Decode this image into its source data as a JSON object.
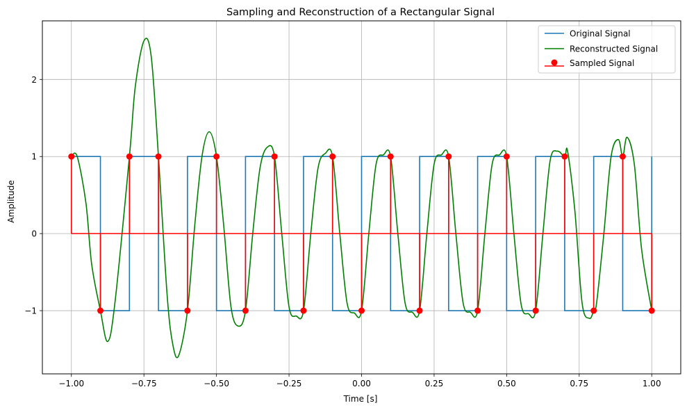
{
  "chart_data": {
    "type": "line",
    "title": "Sampling and Reconstruction of a Rectangular Signal",
    "xlabel": "Time [s]",
    "ylabel": "Amplitude",
    "xlim": [
      -1.1,
      1.1
    ],
    "ylim": [
      -1.82,
      2.76
    ],
    "grid": true,
    "legend_position": "top-right",
    "x_ticks": [
      -1.0,
      -0.75,
      -0.5,
      -0.25,
      0.0,
      0.25,
      0.5,
      0.75,
      1.0
    ],
    "x_tick_labels": [
      "−1.00",
      "−0.75",
      "−0.50",
      "−0.25",
      "0.00",
      "0.25",
      "0.50",
      "0.75",
      "1.00"
    ],
    "y_ticks": [
      -1,
      0,
      1,
      2
    ],
    "y_tick_labels": [
      "−1",
      "0",
      "1",
      "2"
    ],
    "colors": {
      "original": "#1f77b4",
      "reconstructed": "#008000",
      "sampled": "#ff0000",
      "grid": "#b0b0b0"
    },
    "series": [
      {
        "name": "Original Signal",
        "kind": "step",
        "x": [
          -1.0,
          -0.9,
          -0.9,
          -0.8,
          -0.8,
          -0.7,
          -0.7,
          -0.6,
          -0.6,
          -0.5,
          -0.5,
          -0.4,
          -0.4,
          -0.3,
          -0.3,
          -0.2,
          -0.2,
          -0.1,
          -0.1,
          0.0,
          0.0,
          0.1,
          0.1,
          0.2,
          0.2,
          0.3,
          0.3,
          0.4,
          0.4,
          0.5,
          0.5,
          0.6,
          0.6,
          0.7,
          0.7,
          0.8,
          0.8,
          0.9,
          0.9,
          1.0,
          1.0
        ],
        "y": [
          1,
          1,
          -1,
          -1,
          1,
          1,
          -1,
          -1,
          1,
          1,
          -1,
          -1,
          1,
          1,
          -1,
          -1,
          1,
          1,
          -1,
          -1,
          1,
          1,
          -1,
          -1,
          1,
          1,
          -1,
          -1,
          1,
          1,
          -1,
          -1,
          1,
          1,
          -1,
          -1,
          1,
          1,
          -1,
          -1,
          1
        ]
      },
      {
        "name": "Reconstructed Signal",
        "kind": "line",
        "x": [
          -1.0,
          -0.98,
          -0.95,
          -0.93,
          -0.9,
          -0.875,
          -0.85,
          -0.8,
          -0.78,
          -0.75,
          -0.725,
          -0.7,
          -0.67,
          -0.65,
          -0.63,
          -0.6,
          -0.575,
          -0.55,
          -0.525,
          -0.5,
          -0.475,
          -0.45,
          -0.425,
          -0.4,
          -0.375,
          -0.35,
          -0.325,
          -0.3,
          -0.275,
          -0.25,
          -0.225,
          -0.2,
          -0.175,
          -0.15,
          -0.125,
          -0.1,
          -0.075,
          -0.05,
          -0.025,
          0.0,
          0.025,
          0.05,
          0.075,
          0.1,
          0.125,
          0.15,
          0.175,
          0.2,
          0.225,
          0.25,
          0.275,
          0.3,
          0.325,
          0.35,
          0.375,
          0.4,
          0.425,
          0.45,
          0.475,
          0.5,
          0.525,
          0.55,
          0.575,
          0.6,
          0.625,
          0.65,
          0.675,
          0.7,
          0.71,
          0.735,
          0.76,
          0.785,
          0.8,
          0.81,
          0.835,
          0.86,
          0.885,
          0.9,
          0.915,
          0.94,
          0.965,
          1.0
        ],
        "y": [
          1.0,
          1.0,
          0.4,
          -0.4,
          -1.0,
          -1.4,
          -0.9,
          1.0,
          1.9,
          2.5,
          2.3,
          1.0,
          -0.8,
          -1.45,
          -1.58,
          -1.0,
          0.1,
          1.0,
          1.32,
          1.0,
          0.1,
          -0.95,
          -1.2,
          -1.0,
          0.0,
          0.85,
          1.12,
          1.0,
          0.0,
          -0.95,
          -1.07,
          -1.0,
          0.0,
          0.85,
          1.04,
          1.0,
          0.0,
          -0.9,
          -1.03,
          -1.0,
          0.0,
          0.9,
          1.02,
          1.0,
          0.0,
          -0.9,
          -1.02,
          -1.0,
          0.0,
          0.9,
          1.02,
          1.0,
          0.0,
          -0.9,
          -1.02,
          -1.0,
          0.0,
          0.9,
          1.02,
          1.0,
          0.0,
          -0.92,
          -1.04,
          -1.0,
          0.0,
          0.95,
          1.07,
          1.0,
          1.07,
          0.3,
          -0.9,
          -1.1,
          -1.0,
          -0.9,
          0.0,
          1.0,
          1.22,
          1.0,
          1.25,
          0.9,
          -0.2,
          -1.0
        ]
      },
      {
        "name": "Sampled Signal",
        "kind": "stem",
        "baseline": 0,
        "x": [
          -1.0,
          -0.9,
          -0.8,
          -0.7,
          -0.6,
          -0.5,
          -0.4,
          -0.3,
          -0.2,
          -0.1,
          0.0,
          0.1,
          0.2,
          0.3,
          0.4,
          0.5,
          0.6,
          0.7,
          0.8,
          0.9,
          1.0
        ],
        "y": [
          1,
          -1,
          1,
          1,
          -1,
          1,
          -1,
          1,
          -1,
          1,
          -1,
          1,
          -1,
          1,
          -1,
          1,
          -1,
          1,
          -1,
          1,
          -1
        ]
      }
    ]
  }
}
